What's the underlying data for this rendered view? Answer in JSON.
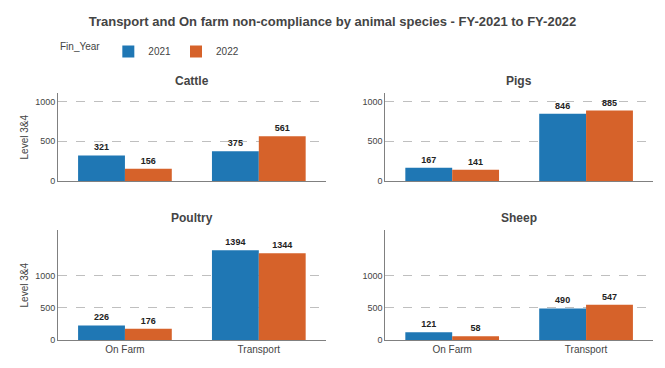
{
  "title": "Transport and On farm non-compliance by animal species - FY-2021 to FY-2022",
  "legend_title": "Fin_Year",
  "chart_data": [
    {
      "type": "bar",
      "title": "Cattle",
      "categories": [
        "On Farm",
        "Transport"
      ],
      "series": [
        {
          "name": "2021",
          "color": "#1f77b4",
          "values": [
            321,
            375
          ]
        },
        {
          "name": "2022",
          "color": "#d6622a",
          "values": [
            156,
            561
          ]
        }
      ],
      "ylabel": "Level 3&4",
      "ylim": [
        0,
        1100
      ],
      "yticks": [
        0,
        500,
        1000
      ],
      "grid": true,
      "data_labels": true,
      "tick_labels": "y"
    },
    {
      "type": "bar",
      "title": "Pigs",
      "categories": [
        "On Farm",
        "Transport"
      ],
      "series": [
        {
          "name": "2021",
          "color": "#1f77b4",
          "values": [
            167,
            846
          ]
        },
        {
          "name": "2022",
          "color": "#d6622a",
          "values": [
            141,
            885
          ]
        }
      ],
      "ylim": [
        0,
        1100
      ],
      "yticks": [
        0,
        500,
        1000
      ],
      "grid": true,
      "data_labels": true,
      "tick_labels": "y"
    },
    {
      "type": "bar",
      "title": "Poultry",
      "categories": [
        "On Farm",
        "Transport"
      ],
      "series": [
        {
          "name": "2021",
          "color": "#1f77b4",
          "values": [
            226,
            1394
          ]
        },
        {
          "name": "2022",
          "color": "#d6622a",
          "values": [
            176,
            1344
          ]
        }
      ],
      "ylabel": "Level 3&4",
      "ylim": [
        0,
        1700
      ],
      "yticks": [
        0,
        500,
        1000
      ],
      "grid": true,
      "data_labels": true
    },
    {
      "type": "bar",
      "title": "Sheep",
      "categories": [
        "On Farm",
        "Transport"
      ],
      "series": [
        {
          "name": "2021",
          "color": "#1f77b4",
          "values": [
            121,
            490
          ]
        },
        {
          "name": "2022",
          "color": "#d6622a",
          "values": [
            58,
            547
          ]
        }
      ],
      "ylim": [
        0,
        1700
      ],
      "yticks": [
        0,
        500,
        1000
      ],
      "grid": true,
      "data_labels": true
    }
  ]
}
